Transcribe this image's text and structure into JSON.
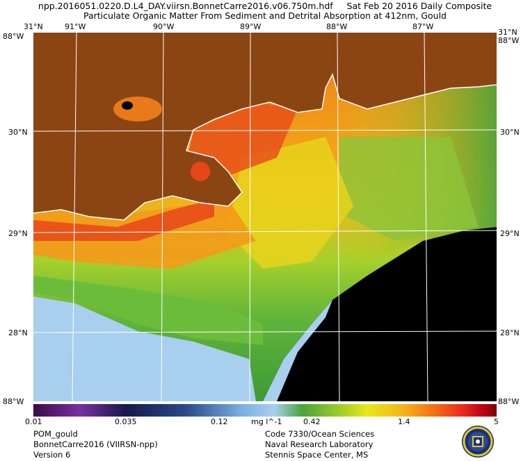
{
  "header": {
    "filename": "npp.2016051.0220.D.L4_DAY.viirsn.BonnetCarre2016.v06.750m.hdf",
    "date": "Sat Feb 20 2016 Daily Composite",
    "subtitle": "Particulate Organic Matter From Sediment and Detrital Absorption at 412nm, Gould"
  },
  "axes": {
    "top_lon": [
      "91°W",
      "90°W",
      "89°W",
      "88°W",
      "87°W"
    ],
    "top_corner_left": "31°N",
    "top_corner_right": "31°N",
    "left_corner_top": "88°W",
    "right_corner_top": "88°W",
    "lat_left": [
      "30°N",
      "29°N",
      "28°N"
    ],
    "lat_right": [
      "30°N",
      "29°N",
      "28°N"
    ],
    "bottom_corner_left": "88°W",
    "bottom_corner_right": "88°W"
  },
  "colorbar": {
    "ticks": [
      "0.01",
      "0.035",
      "0.12",
      "mg l^-1",
      "0.42",
      "1.4",
      "5"
    ],
    "colors": [
      "#3a0a4a",
      "#7a2fa0",
      "#18184a",
      "#2a4a8a",
      "#7ab0e0",
      "#a9cfef",
      "#4aa43a",
      "#9ccc2a",
      "#e8e81a",
      "#f5b21a",
      "#f46a16",
      "#e8281a",
      "#c00010",
      "#7a0008"
    ]
  },
  "footer": {
    "left": [
      "POM_gould",
      "BonnetCarre2016 (VIIRSN-npp)",
      "Version 6"
    ],
    "right": [
      "Code 7330/Ocean Sciences",
      "Naval Research Laboratory",
      "Stennis Space Center, MS"
    ]
  },
  "colors": {
    "land": "#8b4513",
    "coast": "#ffffff",
    "grid": "#ffffff",
    "nodata": "#000000"
  }
}
